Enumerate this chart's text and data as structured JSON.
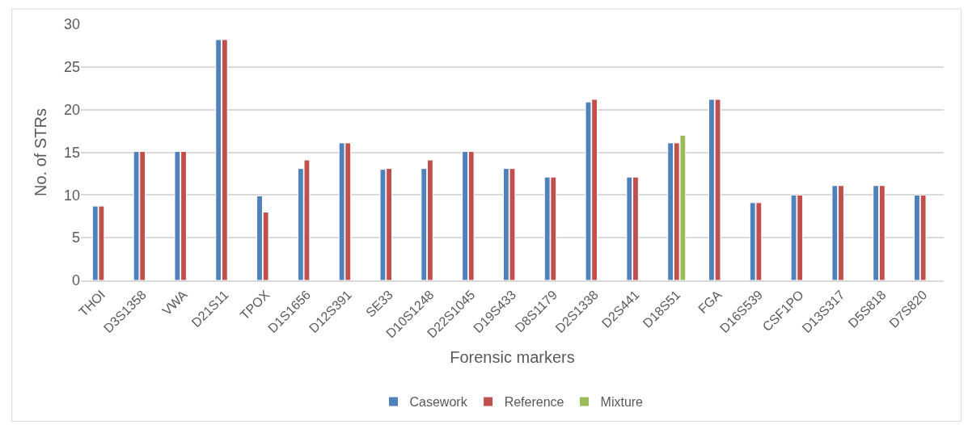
{
  "chart_data": {
    "type": "bar",
    "xlabel": "Forensic markers",
    "ylabel": "No. of STRs",
    "categories": [
      "THOI",
      "D3S1358",
      "VWA",
      "D21S11",
      "TPOX",
      "D1S1656",
      "D12S391",
      "SE33",
      "D10S1248",
      "D22S1045",
      "D19S433",
      "D8S1179",
      "D2S1338",
      "D2S441",
      "D18S51",
      "FGA",
      "D16S539",
      "CSF1PO",
      "D13S317",
      "D5S818",
      "D7S820"
    ],
    "series": [
      {
        "name": "Casework",
        "color": "#4f81bd",
        "values": [
          8.7,
          15.1,
          15.1,
          28.2,
          9.9,
          13.1,
          16.1,
          13.0,
          13.1,
          15.1,
          13.1,
          12.1,
          20.9,
          12.1,
          16.1,
          21.2,
          9.1,
          10.0,
          11.1,
          11.1,
          10.0
        ]
      },
      {
        "name": "Reference",
        "color": "#c0504d",
        "values": [
          8.7,
          15.1,
          15.1,
          28.2,
          8.0,
          14.1,
          16.1,
          13.1,
          14.1,
          15.1,
          13.1,
          12.1,
          21.2,
          12.1,
          16.1,
          21.2,
          9.1,
          10.0,
          11.1,
          11.1,
          10.0
        ]
      },
      {
        "name": "Mixture",
        "color": "#9bbb59",
        "values": [
          null,
          null,
          null,
          null,
          null,
          null,
          null,
          null,
          null,
          null,
          null,
          null,
          null,
          null,
          17.0,
          null,
          null,
          null,
          null,
          null,
          null
        ]
      }
    ],
    "ylim": [
      0,
      30
    ],
    "yticks": [
      0,
      5,
      10,
      15,
      20,
      25,
      30
    ],
    "grid": "y",
    "legend": "bottom"
  }
}
